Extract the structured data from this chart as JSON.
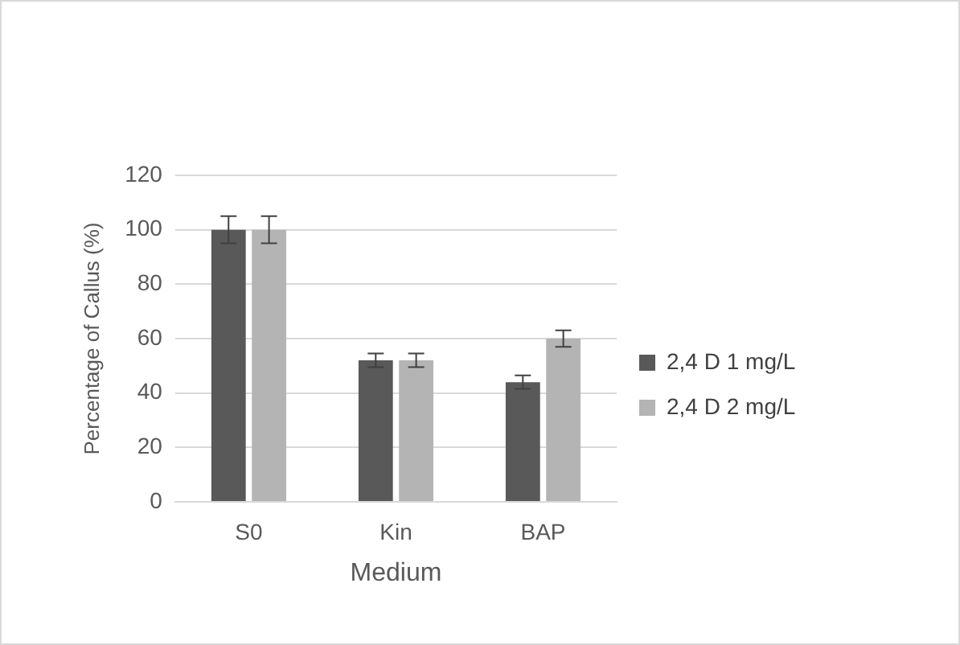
{
  "chart_data": {
    "type": "bar",
    "xlabel": "Medium",
    "ylabel": "Percentage of Callus (%)",
    "categories": [
      "S0",
      "Kin",
      "BAP"
    ],
    "series": [
      {
        "name": "2,4 D 1 mg/L",
        "color": "#595959",
        "values": [
          100,
          52,
          44
        ],
        "errors": [
          5,
          2.5,
          2.5
        ]
      },
      {
        "name": "2,4 D 2 mg/L",
        "color": "#b4b4b4",
        "values": [
          100,
          52,
          60
        ],
        "errors": [
          5,
          2.5,
          3
        ]
      }
    ],
    "ylim": [
      0,
      120
    ],
    "yticks": [
      0,
      20,
      40,
      60,
      80,
      100,
      120
    ],
    "grid": "y",
    "legend": "right"
  }
}
